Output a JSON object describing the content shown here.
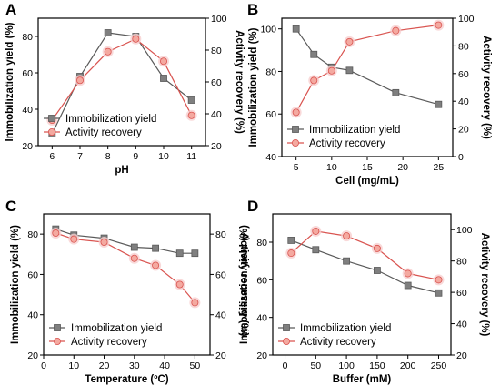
{
  "colors": {
    "series_a": "#595959",
    "series_b": "#d9534f",
    "series_b_fill": "#f4a9a0",
    "halo": "#f8d0d0"
  },
  "chart_data": [
    {
      "panel": "A",
      "type": "line",
      "xlabel": "pH",
      "ylabel_left": "Immobilization yield (%)",
      "ylabel_right": "Activity recovery (%)",
      "xlim": [
        5.5,
        11.5
      ],
      "xticks": [
        6,
        7,
        8,
        9,
        10,
        11
      ],
      "ylim_left": [
        20,
        90
      ],
      "yticks_left": [
        20,
        40,
        60,
        80
      ],
      "ylim_right": [
        20,
        100
      ],
      "yticks_right": [
        20,
        40,
        60,
        80,
        100
      ],
      "legend": "bottom-left",
      "series": [
        {
          "name": "Immobilization yield",
          "axis": "left",
          "marker": "square",
          "x": [
            6,
            7,
            8,
            9,
            10,
            11
          ],
          "y": [
            26.5,
            58,
            82,
            80,
            57,
            45
          ]
        },
        {
          "name": "Activity recovery",
          "axis": "right",
          "marker": "circle",
          "x": [
            6,
            7,
            8,
            9,
            10,
            11
          ],
          "y": [
            36,
            61,
            79,
            87,
            73,
            39
          ]
        }
      ]
    },
    {
      "panel": "B",
      "type": "line",
      "xlabel": "Cell (mg/mL)",
      "ylabel_left": "Immobilization yield (%)",
      "ylabel_right": "Activity recovery (%)",
      "xlim": [
        3,
        27
      ],
      "xticks": [
        5,
        10,
        15,
        20,
        25
      ],
      "ylim_left": [
        40,
        105
      ],
      "yticks_left": [
        40,
        60,
        80,
        100
      ],
      "ylim_right": [
        0,
        100
      ],
      "yticks_right": [
        0,
        20,
        40,
        60,
        80,
        100
      ],
      "legend": "bottom-left",
      "series": [
        {
          "name": "Immobilization yield",
          "axis": "left",
          "marker": "square",
          "x": [
            5,
            7.5,
            10,
            12.5,
            19,
            25
          ],
          "y": [
            100,
            88,
            82,
            80.5,
            70,
            64.5
          ]
        },
        {
          "name": "Activity recovery",
          "axis": "right",
          "marker": "circle",
          "x": [
            5,
            7.5,
            10,
            12.5,
            19,
            25
          ],
          "y": [
            32,
            55,
            62,
            83,
            91,
            95
          ]
        }
      ]
    },
    {
      "panel": "C",
      "type": "line",
      "xlabel": "Temperature (ºC)",
      "ylabel_left": "Immobilization yield (%)",
      "ylabel_right": "Activity recovery (%)",
      "xlim": [
        0,
        55
      ],
      "xticks": [
        0,
        10,
        20,
        30,
        40,
        50
      ],
      "ylim_left": [
        20,
        90
      ],
      "yticks_left": [
        20,
        40,
        60,
        80
      ],
      "ylim_right": [
        20,
        90
      ],
      "yticks_right": [
        20,
        40,
        60,
        80
      ],
      "legend": "bottom-left",
      "series": [
        {
          "name": "Immobilization yield",
          "axis": "left",
          "marker": "square",
          "x": [
            4,
            10,
            20,
            30,
            37,
            45,
            50
          ],
          "y": [
            82.5,
            79.5,
            78,
            73.5,
            73,
            70.5,
            70.5
          ]
        },
        {
          "name": "Activity recovery",
          "axis": "right",
          "marker": "circle",
          "x": [
            4,
            10,
            20,
            30,
            37,
            45,
            50
          ],
          "y": [
            80.5,
            77.5,
            76,
            68,
            64.5,
            55,
            46
          ]
        }
      ]
    },
    {
      "panel": "D",
      "type": "line",
      "xlabel": "Buffer (mM)",
      "ylabel_left": "Immobilization yield (%)",
      "ylabel_right": "Activity recovery (%)",
      "xlim": [
        -20,
        270
      ],
      "xticks": [
        0,
        50,
        100,
        150,
        200,
        250
      ],
      "ylim_left": [
        20,
        95
      ],
      "yticks_left": [
        20,
        40,
        60,
        80
      ],
      "ylim_right": [
        20,
        110
      ],
      "yticks_right": [
        20,
        40,
        60,
        80,
        100
      ],
      "legend": "bottom-left",
      "series": [
        {
          "name": "Immobilization yield",
          "axis": "left",
          "marker": "square",
          "x": [
            10,
            50,
            100,
            150,
            200,
            250
          ],
          "y": [
            81,
            76,
            70,
            65,
            57,
            53
          ]
        },
        {
          "name": "Activity recovery",
          "axis": "right",
          "marker": "circle",
          "x": [
            10,
            50,
            100,
            150,
            200,
            250
          ],
          "y": [
            85,
            99,
            96,
            88,
            72,
            68
          ]
        }
      ]
    }
  ]
}
